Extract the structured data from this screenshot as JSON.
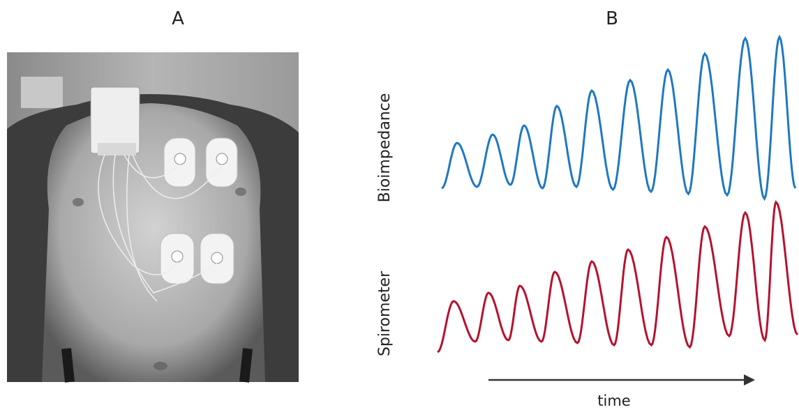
{
  "panels": [
    {
      "label": "A"
    },
    {
      "label": "B",
      "signals": [
        "Bioimpedance",
        "Spirometer"
      ],
      "x_axis_label": "time"
    }
  ]
}
